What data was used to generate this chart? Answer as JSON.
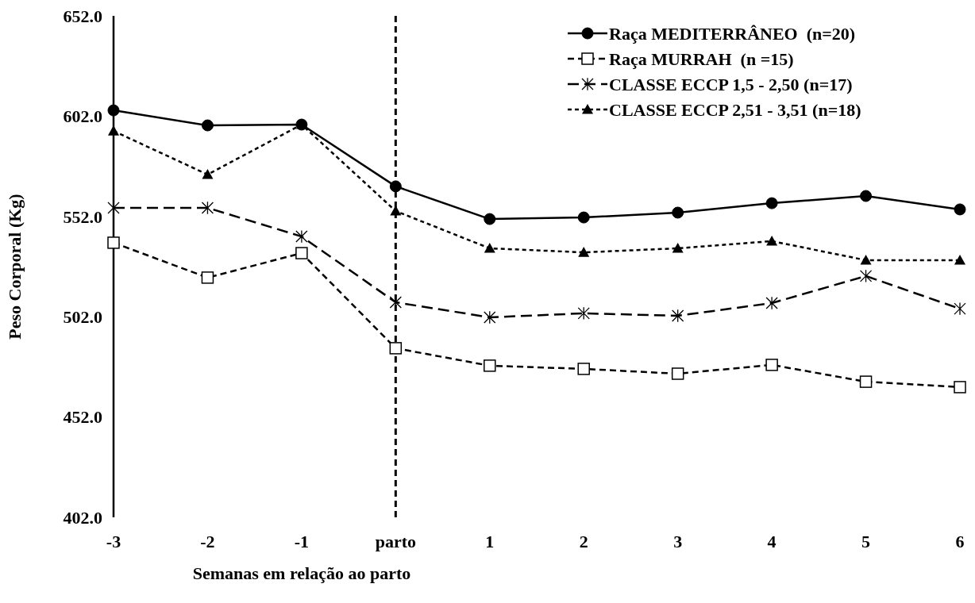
{
  "chart_data": {
    "type": "line",
    "xlabel": "Semanas em relação ao parto",
    "ylabel": "Peso Corporal (Kg)",
    "categories": [
      "-3",
      "-2",
      "-1",
      "parto",
      "1",
      "2",
      "3",
      "4",
      "5",
      "6"
    ],
    "ylim": [
      402,
      652
    ],
    "yticks": [
      {
        "value": 402,
        "label": "402.0"
      },
      {
        "value": 452,
        "label": "452.0"
      },
      {
        "value": 502,
        "label": "502.0"
      },
      {
        "value": 552,
        "label": "552.0"
      },
      {
        "value": 602,
        "label": "602.0"
      },
      {
        "value": 652,
        "label": "652.0"
      }
    ],
    "series": [
      {
        "name": "Raça MEDITERRÂNEO  (n=20)",
        "color": "#000000",
        "marker": "circle",
        "line_style": "solid",
        "values": [
          604.9,
          597.4,
          597.8,
          567.0,
          550.7,
          551.5,
          553.9,
          558.6,
          562.2,
          555.5
        ]
      },
      {
        "name": "Raça MURRAH  (n =15)",
        "color": "#000000",
        "marker": "square",
        "line_style": "dashed",
        "values": [
          538.9,
          521.5,
          533.7,
          486.3,
          477.6,
          476.0,
          473.6,
          478.0,
          469.6,
          466.9
        ]
      },
      {
        "name": "CLASSE ECCP 1,5 - 2,50 (n=17)",
        "color": "#000000",
        "marker": "cross",
        "line_style": "dashed",
        "values": [
          556.3,
          556.3,
          542.0,
          509.2,
          501.7,
          503.7,
          502.5,
          508.8,
          522.3,
          506.0
        ]
      },
      {
        "name": "CLASSE ECCP 2,51 - 3,51 (n=18)",
        "color": "#000000",
        "marker": "triangle",
        "line_style": "dotted",
        "values": [
          594.6,
          572.9,
          597.8,
          554.7,
          536.1,
          534.1,
          536.1,
          539.7,
          530.2,
          530.2
        ]
      }
    ],
    "ref_lines": [
      {
        "axis": "x",
        "value": "parto",
        "color": "#000000",
        "line_style": "dashed"
      }
    ],
    "grid": false,
    "legend": "top right"
  }
}
